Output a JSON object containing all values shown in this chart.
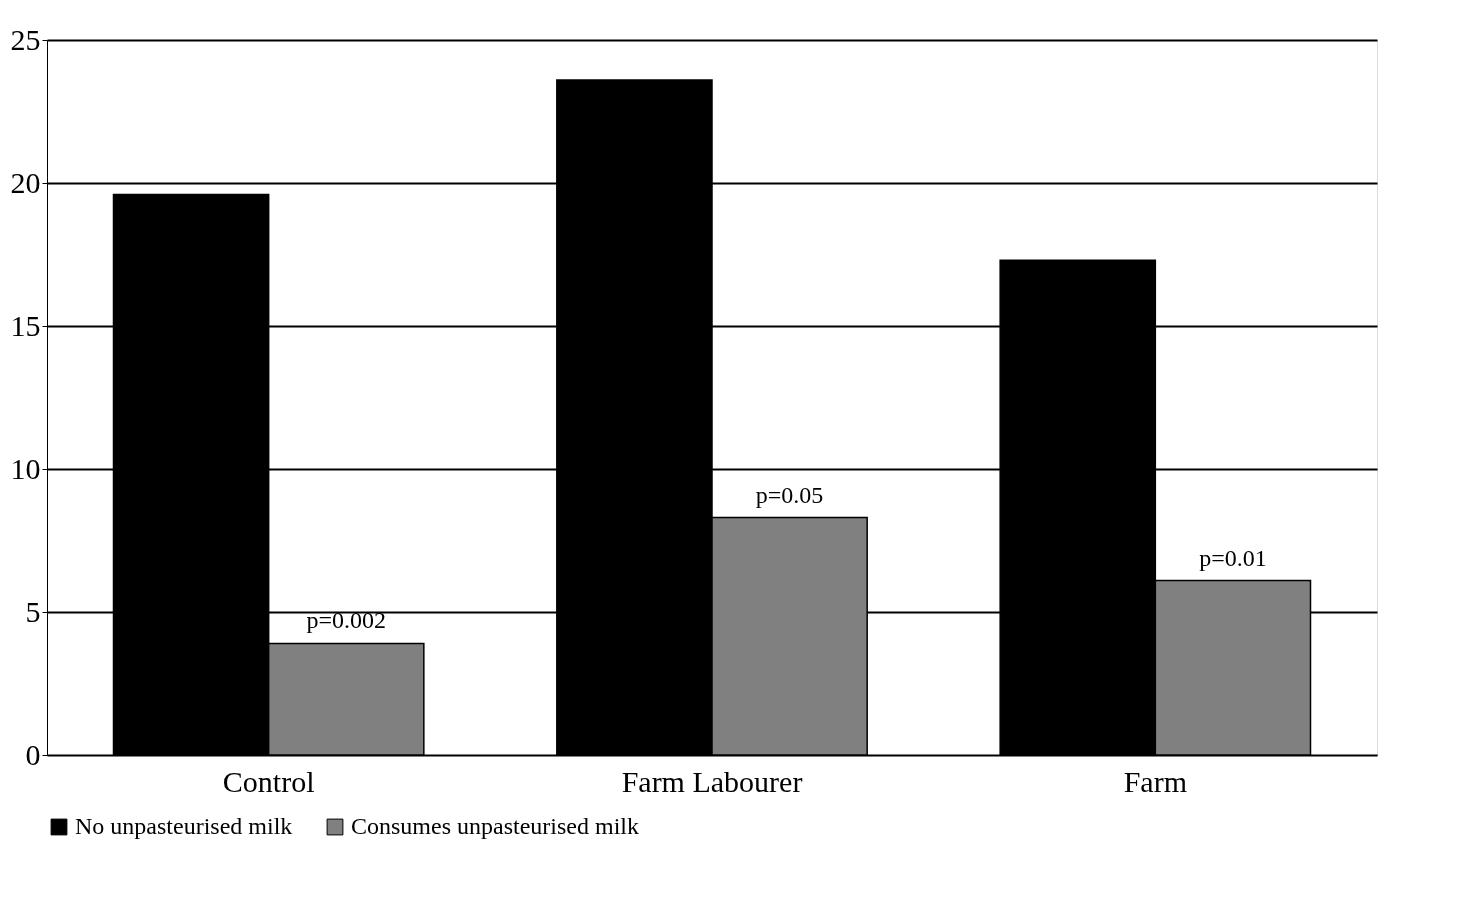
{
  "chart_data": {
    "type": "bar",
    "categories": [
      "Control",
      "Farm Labourer",
      "Farm"
    ],
    "series": [
      {
        "name": "No unpasteurised milk",
        "color": "#000000",
        "values": [
          19.6,
          23.6,
          17.3
        ]
      },
      {
        "name": "Consumes unpasteurised milk",
        "color": "#808080",
        "values": [
          3.9,
          8.3,
          6.1
        ]
      }
    ],
    "ylim": [
      0,
      25
    ],
    "yticks": [
      0,
      5,
      10,
      15,
      20,
      25
    ],
    "grid": "y",
    "legend": "bottom",
    "annotations": [
      {
        "text": "p=0.002",
        "x": "Control",
        "y": 3.9
      },
      {
        "text": "p=0.05",
        "x": "Farm Labourer",
        "y": 8.3
      },
      {
        "text": "p=0.01",
        "x": "Farm",
        "y": 6.1
      }
    ]
  }
}
